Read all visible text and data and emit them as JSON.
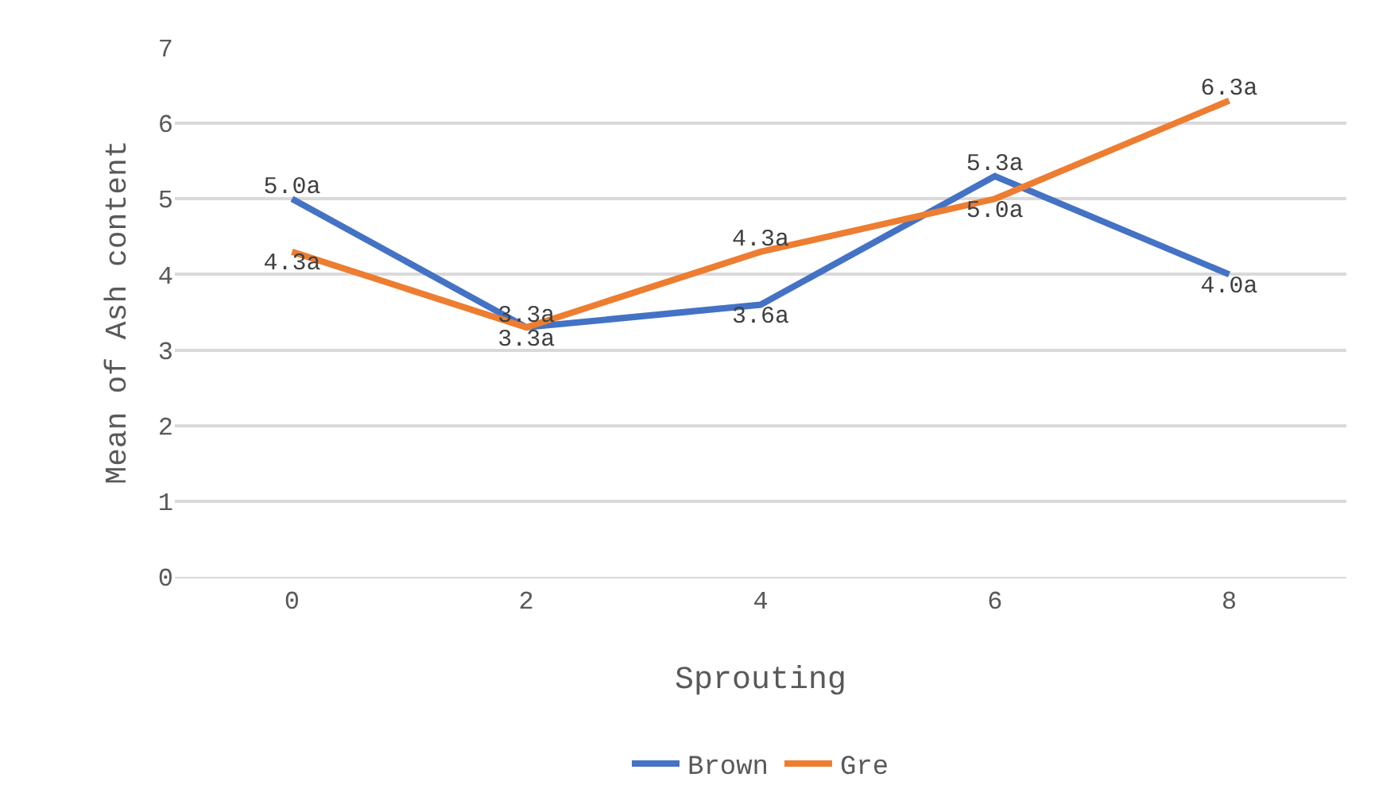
{
  "chart_data": {
    "type": "line",
    "xlabel": "Sprouting",
    "ylabel": "Mean of Ash content",
    "categories": [
      "0",
      "2",
      "4",
      "6",
      "8"
    ],
    "series": [
      {
        "name": "Brown",
        "color": "#4472c4",
        "values": [
          5.0,
          3.3,
          3.6,
          5.3,
          4.0
        ],
        "value_labels": [
          "5.0a",
          "3.3a",
          "3.6a",
          "5.3a",
          "4.0a"
        ]
      },
      {
        "name": "Gre",
        "color": "#ed7d31",
        "values": [
          4.3,
          3.3,
          4.3,
          5.0,
          6.3
        ],
        "value_labels": [
          "4.3a",
          "3.3a",
          "4.3a",
          "5.0a",
          "6.3a"
        ]
      }
    ],
    "ylim": [
      0,
      7
    ],
    "yticks": [
      0,
      1,
      2,
      3,
      4,
      5,
      6,
      7
    ],
    "grid": "y",
    "legend": "bottom",
    "marker": "none",
    "line_style": "solid"
  }
}
